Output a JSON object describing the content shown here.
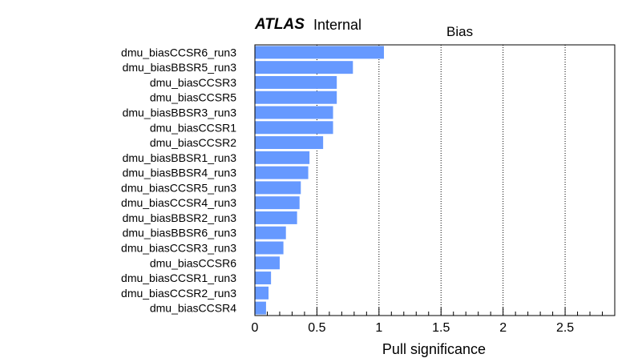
{
  "header": {
    "experiment": "ATLAS",
    "status": "Internal"
  },
  "chart_data": {
    "type": "bar",
    "orientation": "horizontal",
    "title": "Bias",
    "xlabel": "Pull significance",
    "ylabel": "",
    "xlim": [
      0,
      2.9
    ],
    "xticks": [
      "0",
      "0.5",
      "1",
      "1.5",
      "2",
      "2.5"
    ],
    "grid": "vertical dotted lines at 0.5 intervals",
    "bar_color": "#6699ff",
    "categories": [
      "dmu_biasCCSR6_run3",
      "dmu_biasBBSR5_run3",
      "dmu_biasCCSR3",
      "dmu_biasCCSR5",
      "dmu_biasBBSR3_run3",
      "dmu_biasCCSR1",
      "dmu_biasCCSR2",
      "dmu_biasBBSR1_run3",
      "dmu_biasBBSR4_run3",
      "dmu_biasCCSR5_run3",
      "dmu_biasCCSR4_run3",
      "dmu_biasBBSR2_run3",
      "dmu_biasBBSR6_run3",
      "dmu_biasCCSR3_run3",
      "dmu_biasCCSR6",
      "dmu_biasCCSR1_run3",
      "dmu_biasCCSR2_run3",
      "dmu_biasCCSR4"
    ],
    "values": [
      1.04,
      0.79,
      0.66,
      0.66,
      0.63,
      0.63,
      0.55,
      0.44,
      0.43,
      0.37,
      0.36,
      0.34,
      0.25,
      0.23,
      0.2,
      0.13,
      0.11,
      0.09
    ]
  }
}
